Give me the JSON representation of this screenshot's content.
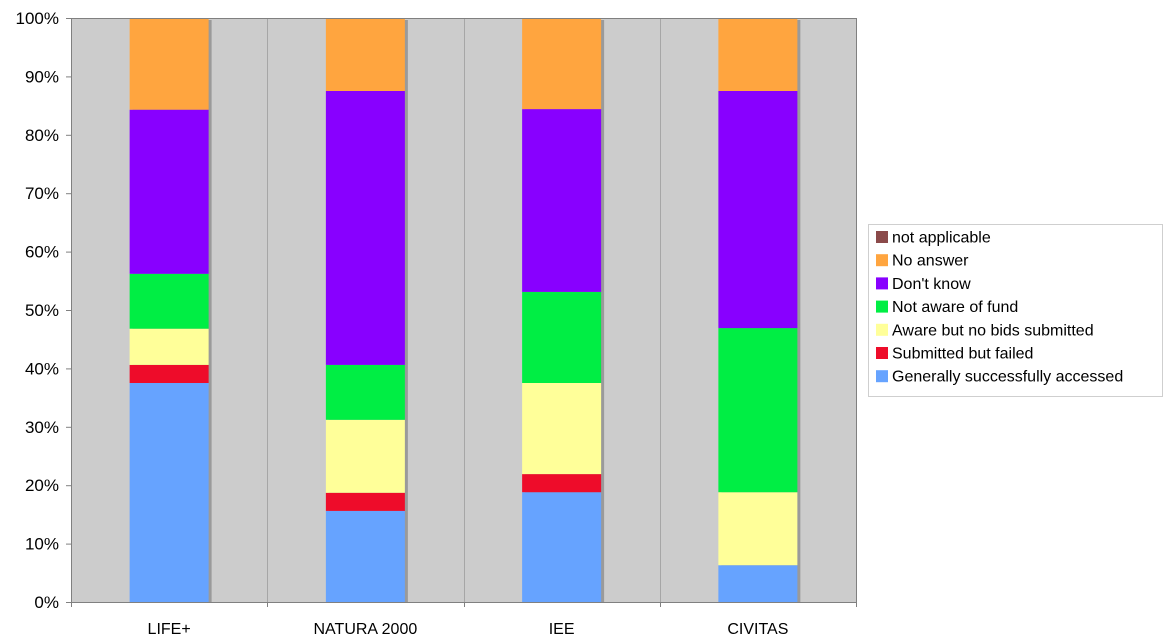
{
  "chart_data": {
    "type": "bar",
    "stacked": "percent",
    "title": "",
    "xlabel": "",
    "ylabel": "",
    "ylim": [
      0,
      100
    ],
    "y_ticks": [
      "0%",
      "10%",
      "20%",
      "30%",
      "40%",
      "50%",
      "60%",
      "70%",
      "80%",
      "90%",
      "100%"
    ],
    "grid": "vertical",
    "legend_position": "right",
    "categories": [
      "LIFE+",
      "NATURA 2000",
      "IEE",
      "CIVITAS"
    ],
    "series": [
      {
        "name": "Generally successfully accessed",
        "color": "#66a3ff",
        "values": [
          37.5,
          15.6,
          18.8,
          6.3
        ]
      },
      {
        "name": "Submitted but failed",
        "color": "#ee0c2a",
        "values": [
          3.1,
          3.1,
          3.1,
          0
        ]
      },
      {
        "name": "Aware but no bids submitted",
        "color": "#ffff99",
        "values": [
          6.2,
          12.5,
          15.6,
          12.5
        ]
      },
      {
        "name": "Not aware of fund",
        "color": "#00ee44",
        "values": [
          9.4,
          9.4,
          15.6,
          28.1
        ]
      },
      {
        "name": "Don't know",
        "color": "#8800ff",
        "values": [
          28.1,
          46.9,
          31.3,
          40.6
        ]
      },
      {
        "name": "No answer",
        "color": "#ffa53f",
        "values": [
          15.7,
          12.5,
          15.6,
          12.5
        ]
      },
      {
        "name": "not applicable",
        "color": "#8b4a4a",
        "values": [
          0,
          0,
          0,
          0
        ]
      }
    ]
  },
  "legend": {
    "items": [
      "not applicable",
      "No answer",
      "Don't know",
      "Not aware of fund",
      "Aware but no bids submitted",
      "Submitted but failed",
      "Generally successfully accessed"
    ]
  },
  "colors": {
    "plot_background": "#cccccc",
    "gridline": "#a6a6a6",
    "axis": "#808080"
  }
}
